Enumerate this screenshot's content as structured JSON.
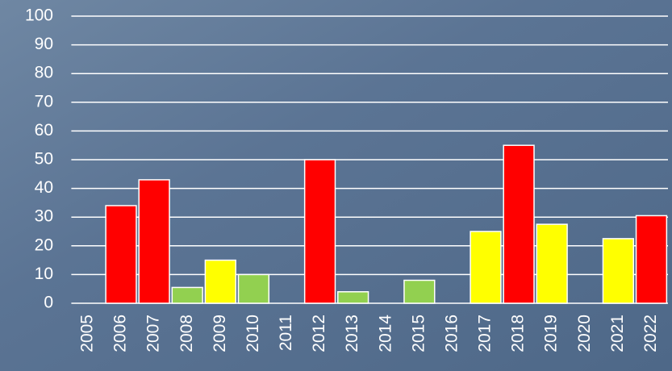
{
  "chart_data": {
    "type": "bar",
    "categories": [
      "2005",
      "2006",
      "2007",
      "2008",
      "2009",
      "2010",
      "2011",
      "2012",
      "2013",
      "2014",
      "2015",
      "2016",
      "2017",
      "2018",
      "2019",
      "2020",
      "2021",
      "2022"
    ],
    "values": [
      null,
      34,
      43,
      5.5,
      15,
      10,
      null,
      50,
      4,
      null,
      8,
      null,
      25,
      55,
      27.5,
      null,
      22.5,
      30.5
    ],
    "colors": [
      null,
      "#ff0000",
      "#ff0000",
      "#92d050",
      "#ffff00",
      "#92d050",
      null,
      "#ff0000",
      "#92d050",
      null,
      "#92d050",
      null,
      "#ffff00",
      "#ff0000",
      "#ffff00",
      null,
      "#ffff00",
      "#ff0000"
    ],
    "ylim": [
      0,
      100
    ],
    "yticks": [
      0,
      10,
      20,
      30,
      40,
      50,
      60,
      70,
      80,
      90,
      100
    ],
    "grid": true
  }
}
